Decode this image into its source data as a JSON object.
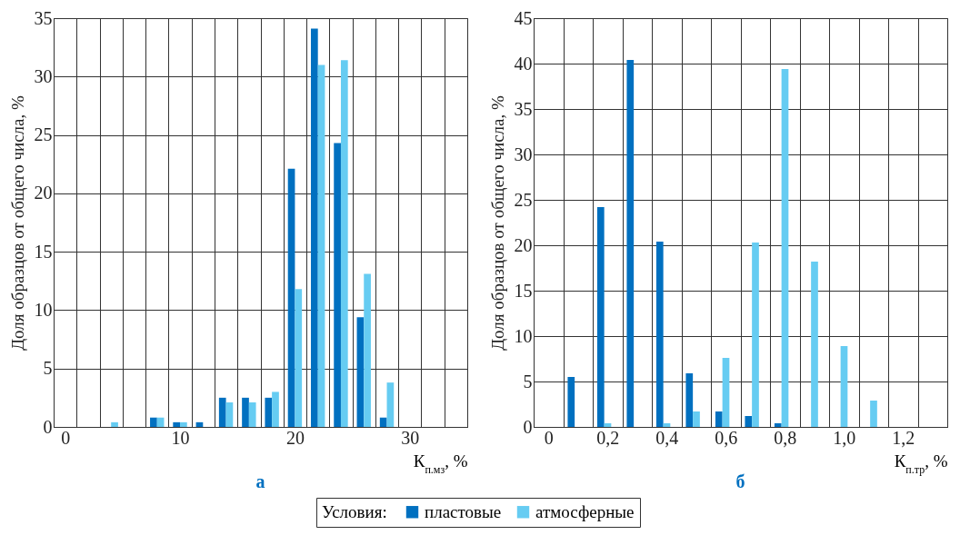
{
  "chart_data": [
    {
      "type": "bar",
      "title": "а",
      "xlabel": "К$_{п.мз}$, %",
      "ylabel": "Доля образцов от общего числа, %",
      "legend_title": "Условия:",
      "legend": "bottom",
      "grid": true,
      "categories": [
        "0",
        null,
        null,
        null,
        null,
        "10",
        null,
        null,
        null,
        null,
        "20",
        null,
        null,
        null,
        null,
        "30",
        null,
        null
      ],
      "ylim": [
        0,
        35
      ],
      "yticks": [
        0,
        5,
        10,
        15,
        20,
        25,
        30,
        35
      ],
      "series": [
        {
          "name": "пластовые",
          "color": "#0070c0",
          "values": [
            null,
            null,
            null,
            null,
            0.8,
            0.4,
            0.4,
            2.5,
            2.5,
            2.5,
            22.1,
            34.1,
            24.3,
            9.4,
            0.8,
            null,
            null,
            null
          ]
        },
        {
          "name": "атмосферные",
          "color": "#66ccf2",
          "values": [
            null,
            null,
            0.4,
            null,
            0.8,
            0.4,
            null,
            2.1,
            2.1,
            3.0,
            11.8,
            31.0,
            31.4,
            13.1,
            3.8,
            null,
            null,
            null
          ]
        }
      ]
    },
    {
      "type": "bar",
      "title": "б",
      "xlabel": "К$_{п.тр}$, %",
      "ylabel": "Доля образцов от общего числа, %",
      "legend": "bottom",
      "grid": true,
      "categories": [
        "0",
        null,
        "0,2",
        null,
        "0,4",
        null,
        "0,6",
        null,
        "0,8",
        null,
        "1,0",
        null,
        "1,2",
        null
      ],
      "ylim": [
        0,
        45
      ],
      "yticks": [
        0,
        5,
        10,
        15,
        20,
        25,
        30,
        35,
        40,
        45
      ],
      "series": [
        {
          "name": "пластовые",
          "color": "#0070c0",
          "values": [
            null,
            5.5,
            24.2,
            40.4,
            20.4,
            5.9,
            1.7,
            1.2,
            0.4,
            null,
            null,
            null,
            null,
            null
          ]
        },
        {
          "name": "атмосферные",
          "color": "#66ccf2",
          "values": [
            null,
            null,
            0.4,
            null,
            0.4,
            1.7,
            7.6,
            20.3,
            39.4,
            18.2,
            8.9,
            2.9,
            null,
            null
          ]
        }
      ]
    }
  ]
}
